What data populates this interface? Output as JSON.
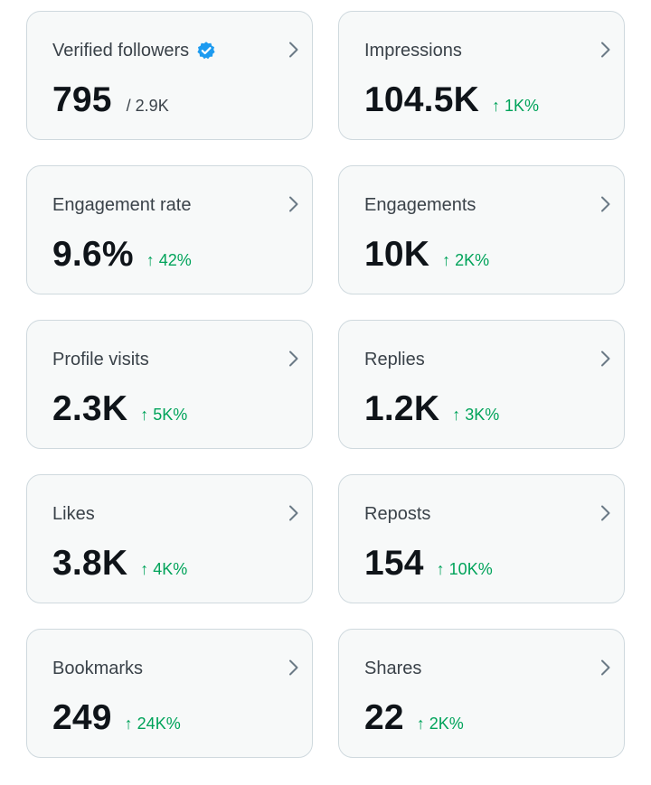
{
  "colors": {
    "card_bg": "#f7f9f9",
    "card_border": "#cfd9de",
    "trend_up": "#00a35a",
    "verified_badge": "#1d9bf0",
    "chevron": "#6b7a86"
  },
  "cards": [
    {
      "id": "verified-followers",
      "label": "Verified followers",
      "value": "795",
      "denominator": "/ 2.9K",
      "verified_icon": "verified-badge-icon"
    },
    {
      "id": "impressions",
      "label": "Impressions",
      "value": "104.5K",
      "trend": "1K%",
      "trend_direction": "up"
    },
    {
      "id": "engagement-rate",
      "label": "Engagement rate",
      "value": "9.6%",
      "trend": "42%",
      "trend_direction": "up"
    },
    {
      "id": "engagements",
      "label": "Engagements",
      "value": "10K",
      "trend": "2K%",
      "trend_direction": "up"
    },
    {
      "id": "profile-visits",
      "label": "Profile visits",
      "value": "2.3K",
      "trend": "5K%",
      "trend_direction": "up"
    },
    {
      "id": "replies",
      "label": "Replies",
      "value": "1.2K",
      "trend": "3K%",
      "trend_direction": "up"
    },
    {
      "id": "likes",
      "label": "Likes",
      "value": "3.8K",
      "trend": "4K%",
      "trend_direction": "up"
    },
    {
      "id": "reposts",
      "label": "Reposts",
      "value": "154",
      "trend": "10K%",
      "trend_direction": "up"
    },
    {
      "id": "bookmarks",
      "label": "Bookmarks",
      "value": "249",
      "trend": "24K%",
      "trend_direction": "up"
    },
    {
      "id": "shares",
      "label": "Shares",
      "value": "22",
      "trend": "2K%",
      "trend_direction": "up"
    }
  ],
  "trend_arrow_glyph": "↑"
}
